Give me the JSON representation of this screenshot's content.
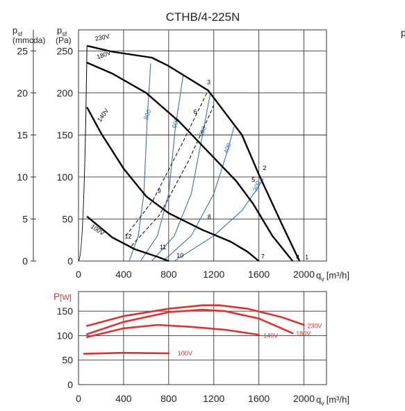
{
  "title": "CTHB/4-225N",
  "clipped_label": "p",
  "chart_data": [
    {
      "type": "line",
      "name": "pressure",
      "title": "CTHB/4-225N",
      "ylabel_left": {
        "main": "p",
        "sub": "sf",
        "unit": "(mmcda)"
      },
      "ylabel_right": {
        "main": "p",
        "sub": "sf",
        "unit": "(Pa)"
      },
      "xlabel": {
        "main": "q",
        "sub": "v",
        "unit": "[m³/h]"
      },
      "xlim": [
        0,
        2200
      ],
      "ylim": [
        0,
        275
      ],
      "grid": true,
      "x_ticks": [
        "0",
        "400",
        "800",
        "1200",
        "1600",
        "2000"
      ],
      "x_tick_values": [
        0,
        400,
        800,
        1200,
        1600,
        2000
      ],
      "y_ticks_pa": [
        "0",
        "50",
        "100",
        "150",
        "200",
        "250"
      ],
      "y_tick_values_pa": [
        0,
        50,
        100,
        150,
        200,
        250
      ],
      "y_ticks_mm": [
        "0",
        "5",
        "10",
        "15",
        "20",
        "25"
      ],
      "series": [
        {
          "name": "230V",
          "color": "#000000",
          "x": [
            75,
            300,
            650,
            800,
            1150,
            1450,
            1600,
            1800,
            1960
          ],
          "y": [
            256,
            249,
            242,
            232,
            203,
            150,
            103,
            45,
            0
          ]
        },
        {
          "name": "180V",
          "color": "#000000",
          "x": [
            75,
            300,
            600,
            900,
            1150,
            1400,
            1550,
            1720,
            1900
          ],
          "y": [
            236,
            223,
            200,
            165,
            130,
            95,
            68,
            30,
            0
          ]
        },
        {
          "name": "140V",
          "color": "#000000",
          "x": [
            75,
            200,
            400,
            600,
            800,
            1100,
            1350,
            1500,
            1600
          ],
          "y": [
            183,
            152,
            110,
            77,
            57,
            37,
            23,
            11,
            0
          ]
        },
        {
          "name": "100V",
          "color": "#000000",
          "x": [
            75,
            300,
            500,
            700,
            800
          ],
          "y": [
            53,
            28,
            14,
            5,
            0
          ]
        }
      ],
      "system_curves": [
        {
          "label": "800",
          "color": "#3a6fb0",
          "x": [
            450,
            530,
            580,
            610,
            640
          ],
          "y": [
            0,
            30,
            80,
            170,
            235
          ]
        },
        {
          "label": "600",
          "color": "#3a6fb0",
          "x": [
            550,
            700,
            800,
            860,
            930
          ],
          "y": [
            0,
            30,
            80,
            160,
            222
          ]
        },
        {
          "label": "500",
          "color": "#3a6fb0",
          "x": [
            650,
            850,
            1000,
            1100,
            1170
          ],
          "y": [
            0,
            30,
            80,
            150,
            200
          ]
        },
        {
          "label": "400",
          "color": "#3a6fb0",
          "x": [
            750,
            1000,
            1200,
            1320,
            1380
          ],
          "y": [
            0,
            30,
            80,
            130,
            160
          ]
        },
        {
          "label": "300",
          "color": "#3a6fb0",
          "x": [
            850,
            1200,
            1450,
            1580,
            1640
          ],
          "y": [
            0,
            30,
            60,
            85,
            98
          ]
        }
      ],
      "dashed_lines": [
        {
          "x": [
            420,
            660,
            920,
            1150
          ],
          "y": [
            30,
            72,
            140,
            203
          ]
        },
        {
          "x": [
            470,
            720,
            980,
            1200
          ],
          "y": [
            18,
            55,
            120,
            185
          ]
        }
      ],
      "point_labels": [
        {
          "text": "1",
          "x": 2010,
          "y": 2
        },
        {
          "text": "2",
          "x": 1635,
          "y": 108
        },
        {
          "text": "3",
          "x": 1140,
          "y": 210
        },
        {
          "text": "4",
          "x": 1930,
          "y": 2
        },
        {
          "text": "5",
          "x": 1535,
          "y": 94
        },
        {
          "text": "6",
          "x": 1020,
          "y": 175
        },
        {
          "text": "7",
          "x": 1620,
          "y": 3
        },
        {
          "text": "8",
          "x": 1145,
          "y": 50
        },
        {
          "text": "9",
          "x": 700,
          "y": 81
        },
        {
          "text": "10",
          "x": 870,
          "y": 4
        },
        {
          "text": "11",
          "x": 720,
          "y": 14
        },
        {
          "text": "12",
          "x": 410,
          "y": 27
        }
      ],
      "series_labels": [
        {
          "text": "230V",
          "x": 150,
          "y": 262,
          "rot": -10
        },
        {
          "text": "180V",
          "x": 170,
          "y": 240,
          "rot": -20
        },
        {
          "text": "140V",
          "x": 195,
          "y": 165,
          "rot": -55
        },
        {
          "text": "100V",
          "x": 105,
          "y": 40,
          "rot": 35
        }
      ]
    },
    {
      "type": "line",
      "name": "power",
      "ylabel": {
        "main": "P",
        "unit": "[W]"
      },
      "xlabel": {
        "main": "q",
        "sub": "v",
        "unit": "[m³/h]"
      },
      "xlim": [
        0,
        2200
      ],
      "ylim": [
        0,
        190
      ],
      "grid": true,
      "x_ticks": [
        "0",
        "400",
        "800",
        "1200",
        "1600",
        "2000"
      ],
      "x_tick_values": [
        0,
        400,
        800,
        1200,
        1600,
        2000
      ],
      "y_ticks": [
        "0",
        "50",
        "100",
        "150"
      ],
      "y_tick_values": [
        0,
        50,
        100,
        150
      ],
      "series": [
        {
          "name": "230V",
          "color": "#e03030",
          "x": [
            75,
            400,
            800,
            1100,
            1250,
            1500,
            1800,
            2000
          ],
          "y": [
            120,
            140,
            155,
            162,
            162,
            155,
            138,
            122
          ]
        },
        {
          "name": "180V",
          "color": "#e03030",
          "x": [
            75,
            400,
            800,
            1100,
            1300,
            1600,
            1900
          ],
          "y": [
            103,
            128,
            148,
            153,
            150,
            135,
            105
          ]
        },
        {
          "name": "140V",
          "color": "#e03030",
          "x": [
            75,
            400,
            700,
            1000,
            1300,
            1600
          ],
          "y": [
            97,
            115,
            122,
            118,
            112,
            102
          ]
        },
        {
          "name": "100V",
          "color": "#e03030",
          "x": [
            50,
            400,
            800
          ],
          "y": [
            63,
            65,
            64
          ]
        }
      ],
      "series_labels": [
        {
          "text": "230V",
          "x": 2030,
          "y": 120
        },
        {
          "text": "180V",
          "x": 1930,
          "y": 104
        },
        {
          "text": "140V",
          "x": 1640,
          "y": 100
        },
        {
          "text": "100V",
          "x": 880,
          "y": 64
        }
      ]
    }
  ]
}
